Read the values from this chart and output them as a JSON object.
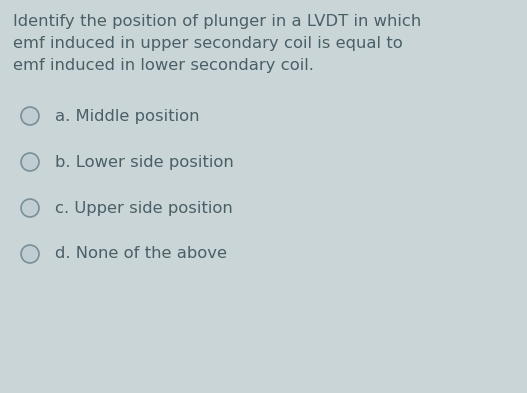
{
  "background_color": "#cad5d8",
  "question_lines": [
    "Identify the position of plunger in a LVDT in which",
    "emf induced in upper secondary coil is equal to",
    "emf induced in lower secondary coil."
  ],
  "options": [
    "a. Middle position",
    "b. Lower side position",
    "c. Upper side position",
    "d. None of the above"
  ],
  "question_font_size": 11.8,
  "option_font_size": 11.8,
  "text_color": "#4a5f66",
  "circle_edge_color": "#7a9099",
  "circle_inner_color": "#c0cdd1",
  "fig_width": 5.27,
  "fig_height": 3.93,
  "dpi": 100
}
